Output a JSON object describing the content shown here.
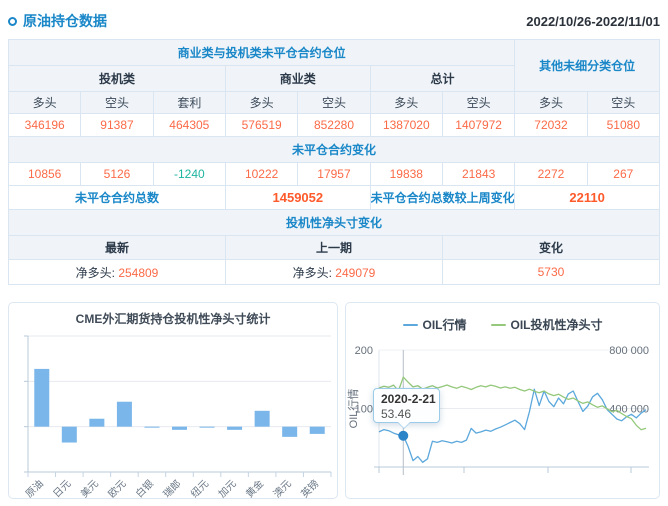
{
  "header": {
    "title": "原油持仓数据",
    "date_range": "2022/10/26-2022/11/01"
  },
  "table": {
    "group_header": "商业类与投机类未平仓合约仓位",
    "other_header": "其他未细分类仓位",
    "subgroups": [
      "投机类",
      "商业类",
      "总计"
    ],
    "col_headers": [
      "多头",
      "空头",
      "套利",
      "多头",
      "空头",
      "多头",
      "空头",
      "多头",
      "空头"
    ],
    "positions": [
      "346196",
      "91387",
      "464305",
      "576519",
      "852280",
      "1387020",
      "1407972",
      "72032",
      "51080"
    ],
    "change_header": "未平仓合约变化",
    "changes": [
      "10856",
      "5126",
      "-1240",
      "10222",
      "17957",
      "19838",
      "21843",
      "2272",
      "267"
    ],
    "total_label": "未平仓合约总数",
    "total_value": "1459052",
    "total_change_label": "未平仓合约总数较上周变化",
    "total_change_value": "22110",
    "net_section_header": "投机性净头寸变化",
    "net_cols": [
      "最新",
      "上一期",
      "变化"
    ],
    "net_latest_label": "净多头:",
    "net_latest_value": "254809",
    "net_prev_label": "净多头:",
    "net_prev_value": "249079",
    "net_change_value": "5730"
  },
  "colors": {
    "accent_blue": "#1a87c8",
    "value_orange": "#fb6a47",
    "total_orange": "#ff5a2b",
    "negative_green": "#1db5a0",
    "bar_blue": "#7ab6e9",
    "line_blue": "#5ca8dc",
    "line_green": "#94c87a",
    "table_border": "#d9e6f2"
  },
  "chart_data": [
    {
      "type": "bar",
      "title": "CME外汇期货持仓投机性净头寸统计",
      "categories": [
        "原油",
        "日元",
        "美元",
        "欧元",
        "白银",
        "瑞郎",
        "纽元",
        "加元",
        "黄金",
        "澳元",
        "英镑"
      ],
      "values": [
        254809,
        -70000,
        35000,
        110000,
        -4000,
        -14000,
        -2000,
        -14000,
        70000,
        -45000,
        -32000
      ],
      "ylim": [
        -200000,
        400000
      ],
      "grid_step": 200000,
      "bar_color": "#7ab6e9",
      "note": "values estimated from bar heights; gridlines every 200000; no y tick labels shown"
    },
    {
      "type": "line",
      "legend": [
        "OIL行情",
        "OIL投机性净头寸"
      ],
      "y_axis_left": {
        "label": "OIL行情",
        "ticks": [
          "200",
          "100"
        ],
        "max": 200,
        "min": 0
      },
      "y_axis_right": {
        "ticks": [
          "800 000",
          "400 000"
        ],
        "max": 800000,
        "min": 0
      },
      "tooltip": {
        "index": 5,
        "date": "2020-2-21",
        "value": "53.46"
      },
      "series": [
        {
          "name": "OIL行情",
          "axis": "left",
          "color": "#5ca8dc",
          "values": [
            60,
            64,
            62,
            58,
            55,
            53.46,
            35,
            11,
            18,
            8,
            14,
            44,
            42,
            45,
            43,
            41,
            44,
            42,
            46,
            66,
            58,
            60,
            63,
            61,
            65,
            68,
            72,
            76,
            80,
            74,
            64,
            95,
            133,
            105,
            130,
            112,
            103,
            118,
            108,
            125,
            130,
            112,
            95,
            104,
            120,
            126,
            115,
            98,
            90,
            82,
            79,
            86,
            90,
            84,
            92,
            98
          ]
        },
        {
          "name": "OIL投机性净头寸",
          "axis": "right",
          "color": "#94c87a",
          "values": [
            540000,
            552000,
            545000,
            560000,
            520000,
            615000,
            580000,
            548000,
            556000,
            532000,
            545000,
            556000,
            540000,
            550000,
            561000,
            548000,
            538000,
            552000,
            542000,
            530000,
            545000,
            556000,
            548000,
            560000,
            552000,
            540000,
            548000,
            538000,
            545000,
            530000,
            520000,
            532000,
            518000,
            508000,
            520000,
            500000,
            488000,
            498000,
            478000,
            462000,
            472000,
            452000,
            435000,
            445000,
            425000,
            408000,
            418000,
            398000,
            378000,
            388000,
            365000,
            345000,
            330000,
            285000,
            255000,
            265000
          ]
        }
      ]
    }
  ]
}
